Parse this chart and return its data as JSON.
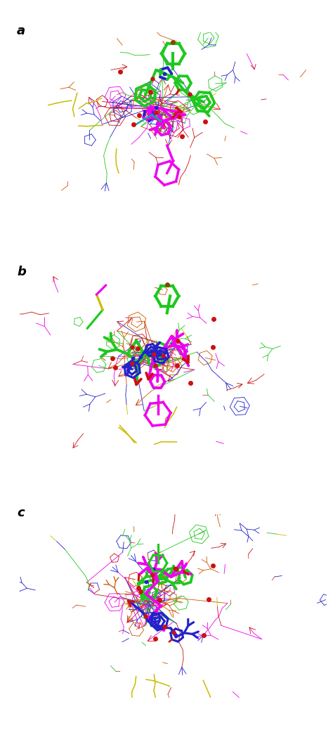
{
  "panel_labels": [
    "a",
    "b",
    "c"
  ],
  "panel_label_fontsize": 13,
  "panel_label_fontweight": "bold",
  "background_color": "#ffffff",
  "figsize": [
    4.74,
    10.39
  ],
  "dpi": 100,
  "colors": {
    "green": "#1ec81e",
    "magenta": "#ee00ee",
    "blue": "#2222cc",
    "red": "#cc1111",
    "yellow": "#ccbb00",
    "cyan": "#00aaaa",
    "orange": "#cc5500",
    "dark": "#111111",
    "darkgreen": "#006600",
    "navy": "#000088"
  },
  "line_widths": {
    "thin": 0.6,
    "medium": 1.1,
    "thick": 2.5
  }
}
